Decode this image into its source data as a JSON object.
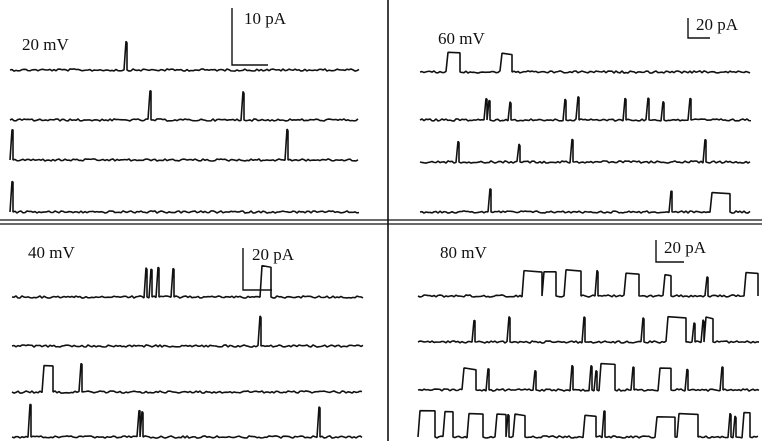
{
  "panels": [
    {
      "voltage": "20 mV",
      "scale": "10 pA"
    },
    {
      "voltage": "60 mV",
      "scale": "20 pA"
    },
    {
      "voltage": "40 mV",
      "scale": "20 pA"
    },
    {
      "voltage": "80 mV",
      "scale": "20 pA"
    }
  ]
}
